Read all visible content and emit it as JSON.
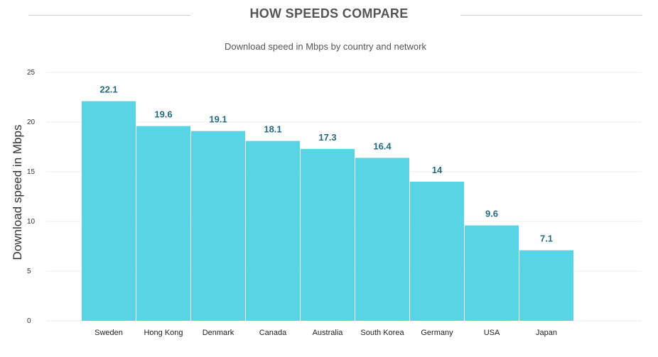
{
  "header": {
    "title": "HOW SPEEDS COMPARE",
    "subtitle": "Download speed in Mbps by country and network"
  },
  "colors": {
    "bar": "#59d4e5",
    "value_label": "#24697f",
    "grid": "#eeeeee",
    "rule": "#cfcfcf"
  },
  "chart_data": {
    "type": "bar",
    "title": "HOW SPEEDS COMPARE",
    "subtitle": "Download speed in Mbps by country and network",
    "xlabel": "",
    "ylabel": "Download speed in Mbps",
    "ylim": [
      0,
      25
    ],
    "yticks": [
      0,
      5,
      10,
      15,
      20,
      25
    ],
    "grid": true,
    "legend": "none",
    "data_labels": true,
    "categories": [
      "Sweden",
      "Hong Kong",
      "Denmark",
      "Canada",
      "Australia",
      "South Korea",
      "Germany",
      "USA",
      "Japan"
    ],
    "values": [
      22.1,
      19.6,
      19.1,
      18.1,
      17.3,
      16.4,
      14,
      9.6,
      7.1
    ]
  }
}
